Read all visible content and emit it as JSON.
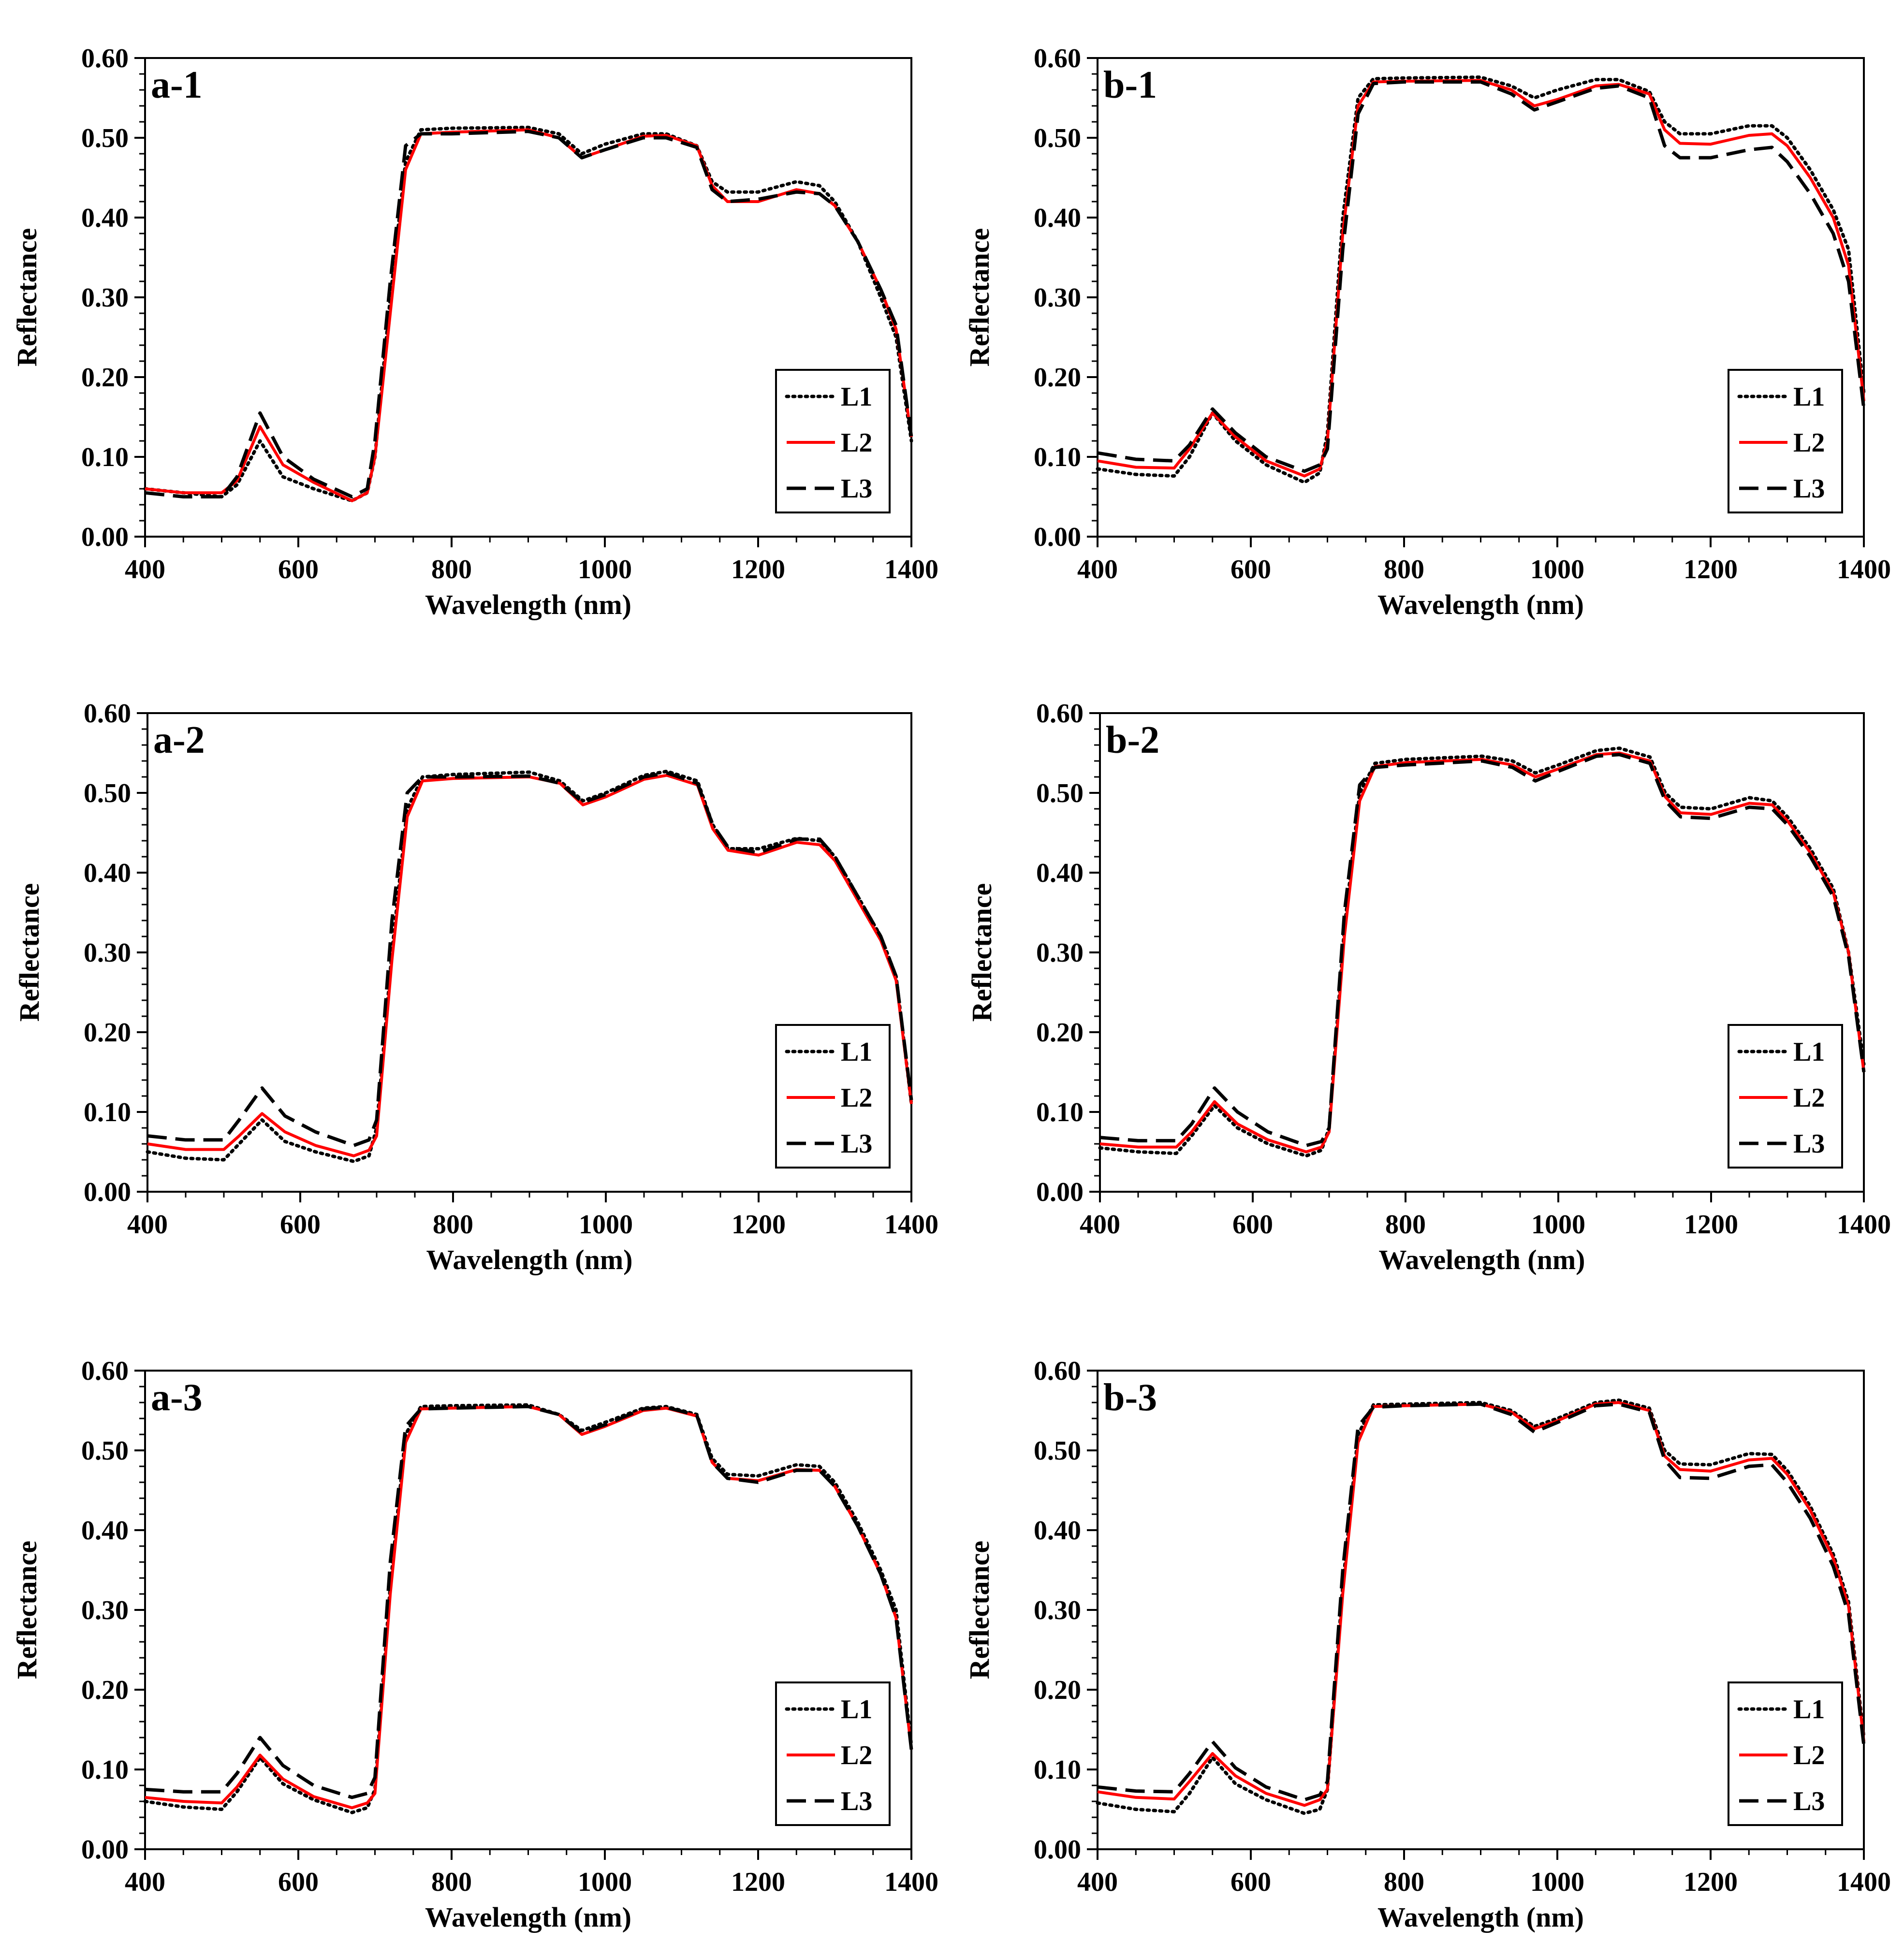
{
  "chart_data": [
    {
      "type": "line",
      "panel_label": "a-1",
      "xlabel": "Wavelength (nm)",
      "ylabel": "Reflectance",
      "xlim": [
        400,
        1400
      ],
      "ylim": [
        0,
        0.6
      ],
      "xticks": [
        "400",
        "600",
        "800",
        "1000",
        "1200",
        "1400"
      ],
      "yticks": [
        "0.00",
        "0.10",
        "0.20",
        "0.30",
        "0.40",
        "0.50",
        "0.60"
      ],
      "legend_position": "bottom-right",
      "x": [
        400,
        450,
        500,
        520,
        550,
        580,
        620,
        670,
        690,
        700,
        720,
        740,
        760,
        800,
        900,
        940,
        970,
        1000,
        1050,
        1080,
        1120,
        1140,
        1160,
        1200,
        1250,
        1280,
        1300,
        1330,
        1360,
        1380,
        1400
      ],
      "series": [
        {
          "name": "L1",
          "values": [
            0.06,
            0.055,
            0.05,
            0.065,
            0.12,
            0.075,
            0.06,
            0.045,
            0.055,
            0.1,
            0.3,
            0.47,
            0.51,
            0.512,
            0.513,
            0.505,
            0.48,
            0.492,
            0.505,
            0.505,
            0.49,
            0.445,
            0.432,
            0.432,
            0.445,
            0.44,
            0.42,
            0.37,
            0.3,
            0.25,
            0.12
          ]
        },
        {
          "name": "L2",
          "values": [
            0.06,
            0.055,
            0.055,
            0.07,
            0.138,
            0.09,
            0.068,
            0.045,
            0.055,
            0.1,
            0.28,
            0.46,
            0.505,
            0.507,
            0.51,
            0.5,
            0.475,
            0.485,
            0.502,
            0.503,
            0.49,
            0.44,
            0.42,
            0.42,
            0.435,
            0.43,
            0.415,
            0.37,
            0.31,
            0.26,
            0.125
          ]
        },
        {
          "name": "L3",
          "values": [
            0.055,
            0.05,
            0.05,
            0.075,
            0.155,
            0.1,
            0.072,
            0.05,
            0.06,
            0.12,
            0.32,
            0.49,
            0.505,
            0.505,
            0.508,
            0.5,
            0.475,
            0.485,
            0.5,
            0.5,
            0.488,
            0.435,
            0.42,
            0.423,
            0.432,
            0.43,
            0.415,
            0.37,
            0.31,
            0.265,
            0.125
          ]
        }
      ]
    },
    {
      "type": "line",
      "panel_label": "b-1",
      "xlabel": "Wavelength (nm)",
      "ylabel": "Reflectance",
      "xlim": [
        400,
        1400
      ],
      "ylim": [
        0,
        0.6
      ],
      "xticks": [
        "400",
        "600",
        "800",
        "1000",
        "1200",
        "1400"
      ],
      "yticks": [
        "0.00",
        "0.10",
        "0.20",
        "0.30",
        "0.40",
        "0.50",
        "0.60"
      ],
      "legend_position": "bottom-right",
      "x": [
        400,
        450,
        500,
        520,
        550,
        580,
        620,
        670,
        690,
        700,
        720,
        740,
        760,
        800,
        900,
        940,
        970,
        1000,
        1050,
        1080,
        1120,
        1140,
        1160,
        1200,
        1250,
        1280,
        1300,
        1330,
        1360,
        1380,
        1400
      ],
      "series": [
        {
          "name": "L1",
          "values": [
            0.085,
            0.078,
            0.076,
            0.1,
            0.155,
            0.12,
            0.09,
            0.068,
            0.08,
            0.13,
            0.4,
            0.55,
            0.574,
            0.575,
            0.576,
            0.565,
            0.55,
            0.56,
            0.573,
            0.573,
            0.558,
            0.52,
            0.505,
            0.505,
            0.515,
            0.515,
            0.5,
            0.46,
            0.41,
            0.36,
            0.18
          ]
        },
        {
          "name": "L2",
          "values": [
            0.095,
            0.087,
            0.086,
            0.11,
            0.155,
            0.125,
            0.095,
            0.076,
            0.085,
            0.12,
            0.38,
            0.54,
            0.57,
            0.571,
            0.572,
            0.56,
            0.54,
            0.548,
            0.565,
            0.567,
            0.555,
            0.51,
            0.493,
            0.492,
            0.503,
            0.505,
            0.49,
            0.45,
            0.4,
            0.34,
            0.17
          ]
        },
        {
          "name": "L3",
          "values": [
            0.105,
            0.097,
            0.095,
            0.115,
            0.16,
            0.13,
            0.1,
            0.082,
            0.09,
            0.11,
            0.36,
            0.53,
            0.568,
            0.57,
            0.57,
            0.555,
            0.535,
            0.545,
            0.562,
            0.565,
            0.55,
            0.49,
            0.475,
            0.475,
            0.485,
            0.488,
            0.47,
            0.43,
            0.38,
            0.32,
            0.16
          ]
        }
      ]
    },
    {
      "type": "line",
      "panel_label": "a-2",
      "xlabel": "Wavelength (nm)",
      "ylabel": "Reflectance",
      "xlim": [
        400,
        1400
      ],
      "ylim": [
        0,
        0.6
      ],
      "xticks": [
        "400",
        "600",
        "800",
        "1000",
        "1200",
        "1400"
      ],
      "yticks": [
        "0.00",
        "0.10",
        "0.20",
        "0.30",
        "0.40",
        "0.50",
        "0.60"
      ],
      "legend_position": "bottom-right",
      "x": [
        400,
        450,
        500,
        520,
        550,
        580,
        620,
        670,
        690,
        700,
        720,
        740,
        760,
        800,
        900,
        940,
        970,
        1000,
        1050,
        1080,
        1120,
        1140,
        1160,
        1200,
        1250,
        1280,
        1300,
        1330,
        1360,
        1380,
        1400
      ],
      "series": [
        {
          "name": "L1",
          "values": [
            0.05,
            0.042,
            0.04,
            0.06,
            0.09,
            0.063,
            0.05,
            0.038,
            0.045,
            0.08,
            0.3,
            0.48,
            0.52,
            0.523,
            0.526,
            0.515,
            0.49,
            0.5,
            0.522,
            0.527,
            0.515,
            0.46,
            0.43,
            0.43,
            0.443,
            0.44,
            0.42,
            0.37,
            0.32,
            0.27,
            0.11
          ]
        },
        {
          "name": "L2",
          "values": [
            0.06,
            0.053,
            0.053,
            0.07,
            0.098,
            0.075,
            0.058,
            0.045,
            0.052,
            0.07,
            0.29,
            0.47,
            0.515,
            0.518,
            0.52,
            0.512,
            0.485,
            0.495,
            0.517,
            0.522,
            0.51,
            0.455,
            0.428,
            0.422,
            0.438,
            0.435,
            0.415,
            0.365,
            0.315,
            0.265,
            0.11
          ]
        },
        {
          "name": "L3",
          "values": [
            0.07,
            0.065,
            0.065,
            0.09,
            0.13,
            0.095,
            0.075,
            0.058,
            0.065,
            0.09,
            0.34,
            0.5,
            0.52,
            0.52,
            0.521,
            0.512,
            0.488,
            0.498,
            0.52,
            0.525,
            0.512,
            0.46,
            0.432,
            0.425,
            0.442,
            0.442,
            0.42,
            0.37,
            0.32,
            0.27,
            0.115
          ]
        }
      ]
    },
    {
      "type": "line",
      "panel_label": "b-2",
      "xlabel": "Wavelength (nm)",
      "ylabel": "Reflectance",
      "xlim": [
        400,
        1400
      ],
      "ylim": [
        0,
        0.6
      ],
      "xticks": [
        "400",
        "600",
        "800",
        "1000",
        "1200",
        "1400"
      ],
      "yticks": [
        "0.00",
        "0.10",
        "0.20",
        "0.30",
        "0.40",
        "0.50",
        "0.60"
      ],
      "legend_position": "bottom-right",
      "x": [
        400,
        450,
        500,
        520,
        550,
        580,
        620,
        670,
        690,
        700,
        720,
        740,
        760,
        800,
        900,
        940,
        970,
        1000,
        1050,
        1080,
        1120,
        1140,
        1160,
        1200,
        1250,
        1280,
        1300,
        1330,
        1360,
        1380,
        1400
      ],
      "series": [
        {
          "name": "L1",
          "values": [
            0.055,
            0.05,
            0.048,
            0.07,
            0.108,
            0.08,
            0.06,
            0.045,
            0.052,
            0.08,
            0.33,
            0.5,
            0.537,
            0.542,
            0.546,
            0.54,
            0.525,
            0.535,
            0.553,
            0.556,
            0.545,
            0.5,
            0.482,
            0.48,
            0.494,
            0.49,
            0.47,
            0.43,
            0.38,
            0.3,
            0.16
          ]
        },
        {
          "name": "L2",
          "values": [
            0.06,
            0.056,
            0.056,
            0.075,
            0.113,
            0.085,
            0.065,
            0.05,
            0.056,
            0.075,
            0.32,
            0.49,
            0.533,
            0.538,
            0.542,
            0.535,
            0.52,
            0.53,
            0.548,
            0.55,
            0.54,
            0.495,
            0.475,
            0.473,
            0.487,
            0.485,
            0.465,
            0.425,
            0.375,
            0.3,
            0.15
          ]
        },
        {
          "name": "L3",
          "values": [
            0.068,
            0.064,
            0.064,
            0.085,
            0.13,
            0.1,
            0.075,
            0.058,
            0.063,
            0.08,
            0.35,
            0.51,
            0.532,
            0.535,
            0.54,
            0.532,
            0.515,
            0.527,
            0.546,
            0.548,
            0.537,
            0.49,
            0.47,
            0.468,
            0.482,
            0.48,
            0.46,
            0.42,
            0.37,
            0.295,
            0.15
          ]
        }
      ]
    },
    {
      "type": "line",
      "panel_label": "a-3",
      "xlabel": "Wavelength (nm)",
      "ylabel": "Reflectance",
      "xlim": [
        400,
        1400
      ],
      "ylim": [
        0,
        0.6
      ],
      "xticks": [
        "400",
        "600",
        "800",
        "1000",
        "1200",
        "1400"
      ],
      "yticks": [
        "0.00",
        "0.10",
        "0.20",
        "0.30",
        "0.40",
        "0.50",
        "0.60"
      ],
      "legend_position": "bottom-right",
      "x": [
        400,
        450,
        500,
        520,
        550,
        580,
        620,
        670,
        690,
        700,
        720,
        740,
        760,
        800,
        900,
        940,
        970,
        1000,
        1050,
        1080,
        1120,
        1140,
        1160,
        1200,
        1250,
        1280,
        1300,
        1330,
        1360,
        1380,
        1400
      ],
      "series": [
        {
          "name": "L1",
          "values": [
            0.06,
            0.053,
            0.05,
            0.072,
            0.115,
            0.082,
            0.062,
            0.046,
            0.052,
            0.075,
            0.33,
            0.52,
            0.555,
            0.556,
            0.557,
            0.545,
            0.525,
            0.535,
            0.553,
            0.555,
            0.545,
            0.49,
            0.47,
            0.468,
            0.482,
            0.48,
            0.46,
            0.41,
            0.35,
            0.3,
            0.13
          ]
        },
        {
          "name": "L2",
          "values": [
            0.065,
            0.06,
            0.058,
            0.078,
            0.118,
            0.088,
            0.066,
            0.052,
            0.058,
            0.07,
            0.32,
            0.51,
            0.552,
            0.553,
            0.555,
            0.545,
            0.52,
            0.53,
            0.55,
            0.553,
            0.543,
            0.485,
            0.465,
            0.462,
            0.476,
            0.475,
            0.455,
            0.405,
            0.345,
            0.29,
            0.125
          ]
        },
        {
          "name": "L3",
          "values": [
            0.075,
            0.072,
            0.072,
            0.095,
            0.14,
            0.105,
            0.08,
            0.065,
            0.07,
            0.09,
            0.36,
            0.53,
            0.552,
            0.553,
            0.555,
            0.545,
            0.522,
            0.532,
            0.552,
            0.554,
            0.544,
            0.485,
            0.465,
            0.46,
            0.475,
            0.475,
            0.455,
            0.405,
            0.345,
            0.29,
            0.125
          ]
        }
      ]
    },
    {
      "type": "line",
      "panel_label": "b-3",
      "xlabel": "Wavelength (nm)",
      "ylabel": "Reflectance",
      "xlim": [
        400,
        1400
      ],
      "ylim": [
        0,
        0.6
      ],
      "xticks": [
        "400",
        "600",
        "800",
        "1000",
        "1200",
        "1400"
      ],
      "yticks": [
        "0.00",
        "0.10",
        "0.20",
        "0.30",
        "0.40",
        "0.50",
        "0.60"
      ],
      "legend_position": "bottom-right",
      "x": [
        400,
        450,
        500,
        520,
        550,
        580,
        620,
        670,
        690,
        700,
        720,
        740,
        760,
        800,
        900,
        940,
        970,
        1000,
        1050,
        1080,
        1120,
        1140,
        1160,
        1200,
        1250,
        1280,
        1300,
        1330,
        1360,
        1380,
        1400
      ],
      "series": [
        {
          "name": "L1",
          "values": [
            0.058,
            0.05,
            0.047,
            0.07,
            0.115,
            0.082,
            0.062,
            0.045,
            0.05,
            0.075,
            0.33,
            0.52,
            0.557,
            0.558,
            0.56,
            0.55,
            0.53,
            0.54,
            0.56,
            0.563,
            0.553,
            0.5,
            0.483,
            0.482,
            0.496,
            0.495,
            0.475,
            0.43,
            0.37,
            0.31,
            0.14
          ]
        },
        {
          "name": "L2",
          "values": [
            0.072,
            0.065,
            0.063,
            0.085,
            0.12,
            0.092,
            0.07,
            0.055,
            0.062,
            0.075,
            0.32,
            0.51,
            0.555,
            0.556,
            0.558,
            0.548,
            0.527,
            0.537,
            0.558,
            0.56,
            0.55,
            0.493,
            0.476,
            0.474,
            0.488,
            0.49,
            0.47,
            0.425,
            0.365,
            0.305,
            0.135
          ]
        },
        {
          "name": "L3",
          "values": [
            0.078,
            0.073,
            0.072,
            0.095,
            0.135,
            0.102,
            0.078,
            0.062,
            0.068,
            0.085,
            0.35,
            0.53,
            0.554,
            0.556,
            0.558,
            0.545,
            0.523,
            0.535,
            0.556,
            0.558,
            0.548,
            0.488,
            0.466,
            0.465,
            0.48,
            0.482,
            0.46,
            0.415,
            0.355,
            0.295,
            0.13
          ]
        }
      ]
    }
  ],
  "series_styles": {
    "L1": {
      "color": "#000000",
      "dash": "dotted"
    },
    "L2": {
      "color": "#ff0000",
      "dash": "solid"
    },
    "L3": {
      "color": "#000000",
      "dash": "dashed"
    }
  }
}
